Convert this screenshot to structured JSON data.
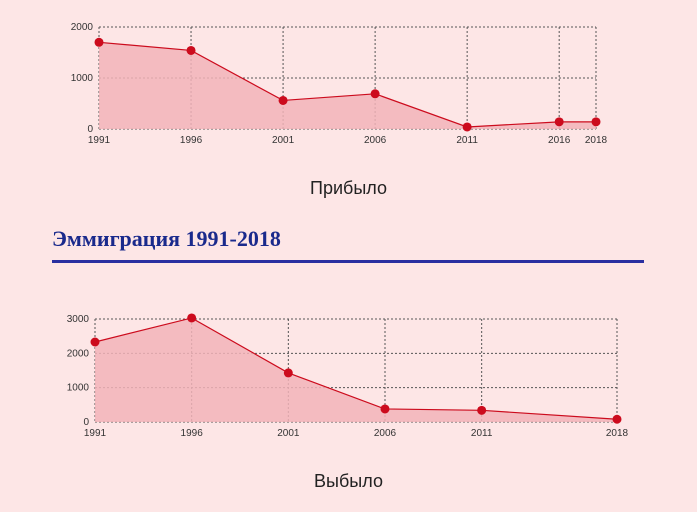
{
  "chart_data": [
    {
      "type": "area",
      "caption": "Прибыло",
      "x": [
        "1991",
        "1996",
        "2001",
        "2006",
        "2011",
        "2016",
        "2018"
      ],
      "values": [
        1700,
        1540,
        560,
        690,
        40,
        140,
        140
      ],
      "yticks": [
        0,
        1000,
        2000
      ],
      "ylim": [
        0,
        2000
      ],
      "grid": true,
      "color": "#cc0b1d",
      "fill": "#f2b3b8"
    },
    {
      "type": "area",
      "caption": "Выбыло",
      "x": [
        "1991",
        "1996",
        "2001",
        "2006",
        "2011",
        "2018"
      ],
      "values": [
        2330,
        3030,
        1430,
        380,
        340,
        80
      ],
      "yticks": [
        0,
        1000,
        2000,
        3000
      ],
      "ylim": [
        0,
        3000
      ],
      "grid": true,
      "color": "#cc0b1d",
      "fill": "#f2b3b8"
    }
  ],
  "section": {
    "heading": "Эммиграция 1991-2018"
  }
}
